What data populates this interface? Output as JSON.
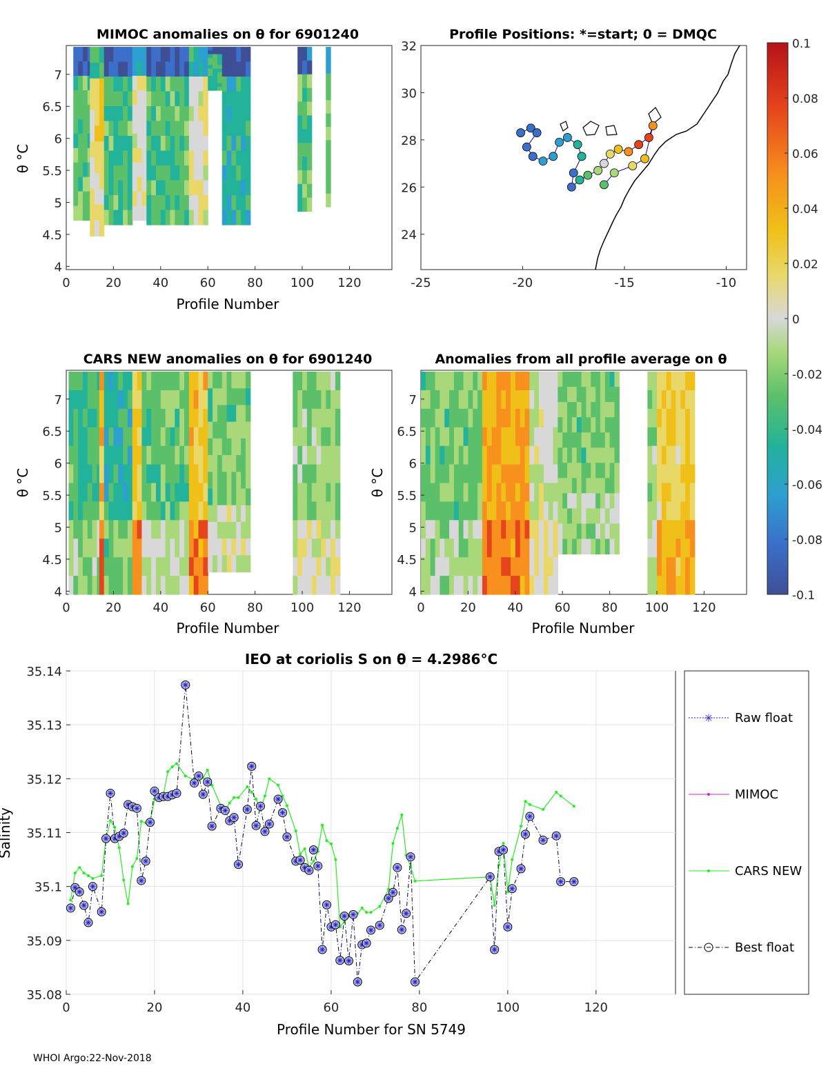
{
  "footer": "WHOI Argo:22-Nov-2018",
  "panels": {
    "mimoc": {
      "title": "MIMOC anomalies on θ  for 6901240",
      "xlabel": "Profile Number",
      "ylabel": "θ °C",
      "xticks": [
        "0",
        "20",
        "40",
        "60",
        "80",
        "100",
        "120"
      ],
      "yticks": [
        "4",
        "4.5",
        "5",
        "5.5",
        "6",
        "6.5",
        "7"
      ]
    },
    "positions": {
      "title": "Profile Positions: *=start; 0 = DMQC",
      "xticks": [
        "-25",
        "-20",
        "-15",
        "-10"
      ],
      "yticks": [
        "24",
        "26",
        "28",
        "30",
        "32"
      ]
    },
    "cars": {
      "title": "CARS NEW anomalies on θ for 6901240",
      "xlabel": "Profile Number",
      "ylabel": "θ °C",
      "xticks": [
        "0",
        "20",
        "40",
        "60",
        "80",
        "100",
        "120"
      ],
      "yticks": [
        "4",
        "4.5",
        "5",
        "5.5",
        "6",
        "6.5",
        "7"
      ]
    },
    "allavg": {
      "title": "Anomalies from all profile average on θ",
      "xlabel": "Profile Number",
      "ylabel": "θ °C",
      "xticks": [
        "0",
        "20",
        "40",
        "60",
        "80",
        "100",
        "120"
      ],
      "yticks": [
        "4",
        "4.5",
        "5",
        "5.5",
        "6",
        "6.5",
        "7"
      ]
    }
  },
  "colorbar": {
    "ticks": [
      "0.1",
      "0.08",
      "0.06",
      "0.04",
      "0.02",
      "0",
      "-0.02",
      "-0.04",
      "-0.06",
      "-0.08",
      "-0.1"
    ],
    "colors": [
      "#3e4f96",
      "#3b6fc9",
      "#2d9fd0",
      "#22b39a",
      "#5cc06a",
      "#a8d87a",
      "#d8d8d8",
      "#e9d868",
      "#f0c018",
      "#f7901c",
      "#e6451b",
      "#b5121b"
    ]
  },
  "chart_data": {
    "type": "line",
    "title": "IEO at coriolis S on θ = 4.2986°C",
    "xlabel": "Profile Number for SN 5749",
    "ylabel": "Salinity",
    "xlim": [
      0,
      138
    ],
    "ylim": [
      35.08,
      35.14
    ],
    "xticks": [
      "0",
      "20",
      "40",
      "60",
      "80",
      "100",
      "120"
    ],
    "yticks": [
      "35.08",
      "35.09",
      "35.1",
      "35.11",
      "35.12",
      "35.13",
      "35.14"
    ],
    "grid": true,
    "legend_position": "right",
    "legend": [
      "Raw float",
      "MIMOC",
      "CARS NEW",
      "Best float"
    ],
    "colors": {
      "raw": "#2222cc",
      "mimoc": "#d020d0",
      "cars": "#22ee22",
      "best": "#000033"
    },
    "series": [
      {
        "name": "Best float",
        "x": [
          1,
          2,
          3,
          4,
          5,
          6,
          8,
          9,
          10,
          11,
          12,
          13,
          14,
          15,
          16,
          17,
          18,
          19,
          20,
          21,
          22,
          23,
          24,
          25,
          27,
          29,
          30,
          31,
          32,
          33,
          35,
          36,
          37,
          38,
          39,
          41,
          42,
          43,
          44,
          45,
          46,
          48,
          49,
          50,
          52,
          53,
          54,
          55,
          56,
          57,
          58,
          59,
          60,
          61,
          62,
          63,
          64,
          65,
          66,
          67,
          68,
          69,
          71,
          73,
          74,
          75,
          76,
          77,
          78,
          79,
          96,
          97,
          98,
          99,
          100,
          101,
          103,
          104,
          105,
          108,
          111,
          112,
          115
        ],
        "y": [
          35.096,
          35.0998,
          35.099,
          35.0965,
          35.0933,
          35.1,
          35.0953,
          35.1089,
          35.1173,
          35.1089,
          35.1093,
          35.1099,
          35.1152,
          35.1148,
          35.1145,
          35.1011,
          35.1047,
          35.1119,
          35.1177,
          35.1165,
          35.1167,
          35.1167,
          35.117,
          35.1173,
          35.1374,
          35.1192,
          35.1205,
          35.1171,
          35.1194,
          35.1112,
          35.1145,
          35.1141,
          35.1122,
          35.1128,
          35.1041,
          35.1143,
          35.1223,
          35.1113,
          35.1149,
          35.1102,
          35.1116,
          35.1162,
          35.1137,
          35.1092,
          35.1047,
          35.1049,
          35.1035,
          35.103,
          35.1068,
          35.1038,
          35.0883,
          35.0966,
          35.0925,
          35.0929,
          35.0863,
          35.0945,
          35.0862,
          35.0948,
          35.0823,
          35.0892,
          35.0895,
          35.0919,
          35.0928,
          35.0978,
          35.0989,
          35.1035,
          35.092,
          35.095,
          35.1055,
          35.0823,
          35.1018,
          35.0883,
          35.1065,
          35.1068,
          35.0925,
          35.0996,
          35.1033,
          35.1097,
          35.113,
          35.1086,
          35.1094,
          35.1009,
          35.1009
        ]
      },
      {
        "name": "CARS NEW",
        "x": [
          1,
          2,
          3,
          4,
          5,
          6,
          8,
          9,
          10,
          11,
          12,
          13,
          14,
          15,
          16,
          17,
          18,
          19,
          20,
          21,
          22,
          23,
          24,
          25,
          27,
          29,
          30,
          31,
          32,
          33,
          35,
          36,
          37,
          38,
          39,
          41,
          42,
          43,
          44,
          45,
          46,
          48,
          49,
          50,
          52,
          53,
          54,
          55,
          56,
          57,
          58,
          59,
          60,
          61,
          62,
          63,
          64,
          65,
          66,
          67,
          68,
          69,
          71,
          73,
          74,
          75,
          76,
          77,
          78,
          79,
          96,
          97,
          98,
          99,
          100,
          101,
          103,
          104,
          105,
          108,
          111,
          112,
          115
        ],
        "y": [
          35.0975,
          35.1025,
          35.1035,
          35.1025,
          35.102,
          35.1015,
          35.102,
          35.1088,
          35.1122,
          35.111,
          35.1072,
          35.1012,
          35.0968,
          35.1037,
          35.1052,
          35.1121,
          35.1118,
          35.112,
          35.1162,
          35.1162,
          35.117,
          35.1213,
          35.1222,
          35.1228,
          35.1205,
          35.1198,
          35.1207,
          35.1202,
          35.1216,
          35.1188,
          35.115,
          35.114,
          35.1155,
          35.1165,
          35.1165,
          35.1185,
          35.1175,
          35.1162,
          35.1142,
          35.1168,
          35.12,
          35.1188,
          35.1168,
          35.115,
          35.1103,
          35.106,
          35.107,
          35.1035,
          35.1047,
          35.1065,
          35.1114,
          35.1085,
          35.1079,
          35.105,
          35.0925,
          35.0935,
          35.0945,
          35.0945,
          35.095,
          35.096,
          35.0952,
          35.0952,
          35.0963,
          35.0995,
          35.108,
          35.1108,
          35.1133,
          35.1058,
          35.1037,
          35.101,
          35.1018,
          35.0965,
          35.104,
          35.108,
          35.099,
          35.105,
          35.1112,
          35.1158,
          35.1152,
          35.1143,
          35.1175,
          35.1168,
          35.1149
        ]
      }
    ]
  }
}
